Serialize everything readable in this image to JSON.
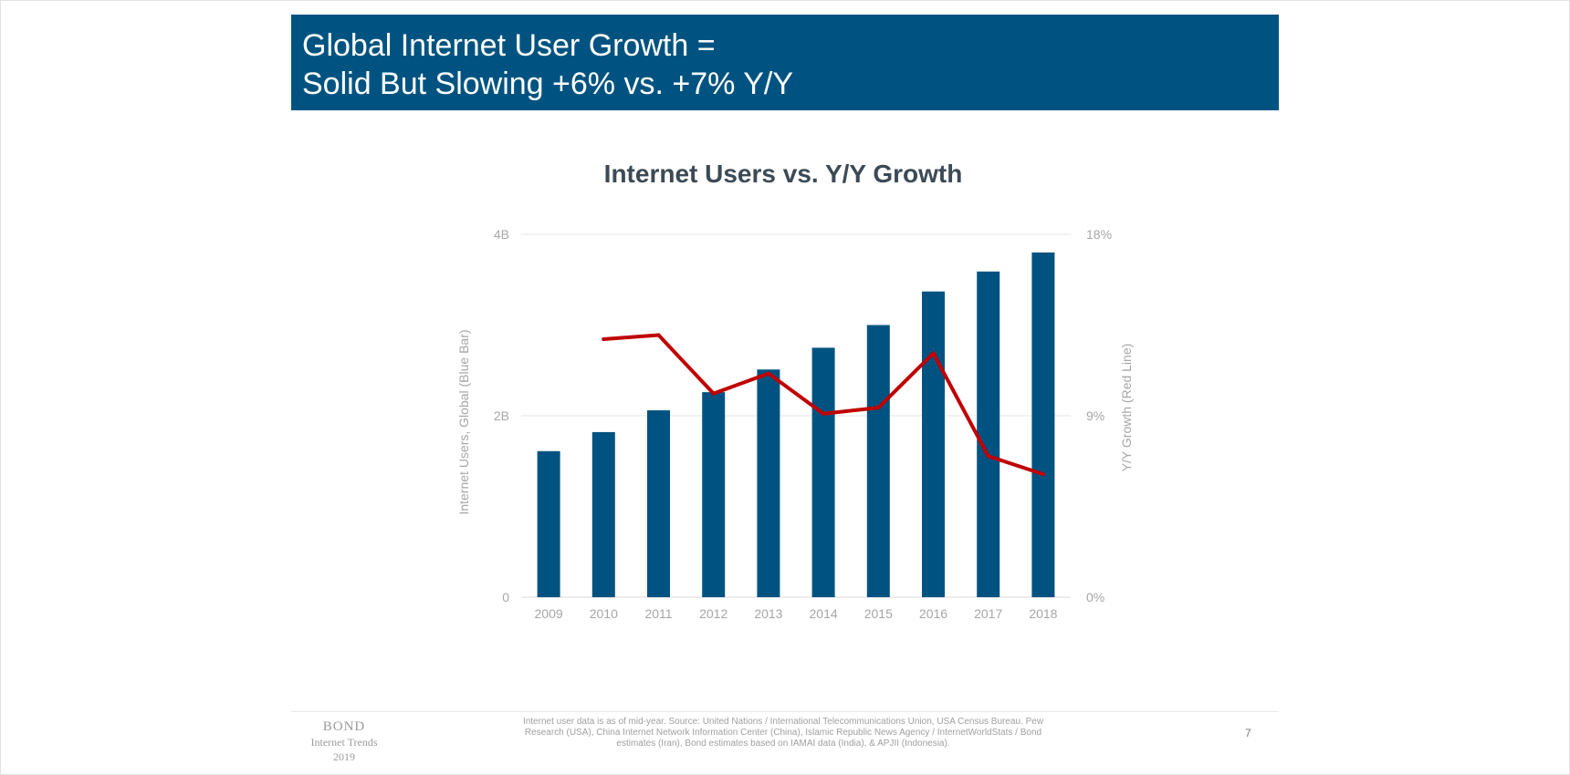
{
  "slide": {
    "title_lines": [
      "Global Internet User Growth =",
      "Solid But Slowing +6% vs. +7% Y/Y"
    ],
    "header_color": "#005380"
  },
  "chart_data": {
    "type": "bar",
    "title": "Internet Users vs. Y/Y Growth",
    "categories": [
      "2009",
      "2010",
      "2011",
      "2012",
      "2013",
      "2014",
      "2015",
      "2016",
      "2017",
      "2018"
    ],
    "series": [
      {
        "name": "Internet Users, Global (Blue Bar)",
        "type": "bar",
        "axis": "left",
        "color": "#005380",
        "values": [
          1.61,
          1.82,
          2.06,
          2.26,
          2.51,
          2.75,
          3.0,
          3.37,
          3.59,
          3.8
        ]
      },
      {
        "name": "Y/Y Growth (Red Line)",
        "type": "line",
        "axis": "right",
        "color": "#c00000",
        "values": [
          null,
          12.8,
          13.0,
          10.1,
          11.1,
          9.1,
          9.4,
          12.1,
          7.0,
          6.1
        ]
      }
    ],
    "ylabel": "Internet Users, Global (Blue Bar)",
    "y2label": "Y/Y Growth (Red Line)",
    "ylim": [
      0,
      4
    ],
    "y2lim": [
      0,
      18
    ],
    "yticks": [
      {
        "value": 0,
        "label": "0"
      },
      {
        "value": 2,
        "label": "2B"
      },
      {
        "value": 4,
        "label": "4B"
      }
    ],
    "y2ticks": [
      {
        "value": 0,
        "label": "0%"
      },
      {
        "value": 9,
        "label": "9%"
      },
      {
        "value": 18,
        "label": "18%"
      }
    ],
    "grid": true,
    "legend": "none"
  },
  "footer": {
    "brand_name": "BOND",
    "brand_sub": "Internet Trends",
    "brand_year": "2019",
    "source_note": "Internet user data is as of mid-year.  Source: United Nations / International Telecommunications Union, USA Census Bureau. Pew Research (USA), China Internet Network Information Center (China), Islamic Republic News Agency / InternetWorldStats / Bond estimates (Iran), Bond estimates based on IAMAI data (India), & APJII (Indonesia).",
    "page_number": "7"
  }
}
